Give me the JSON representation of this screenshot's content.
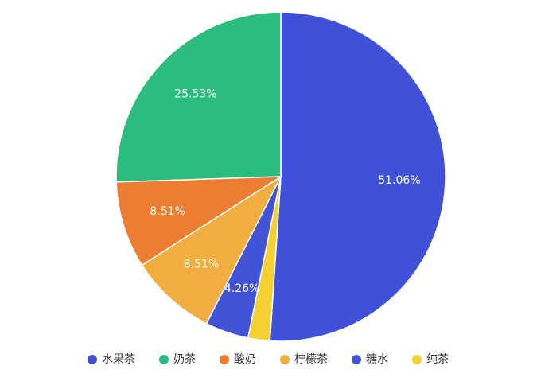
{
  "chart_data": {
    "type": "pie",
    "categories": [
      "水果茶",
      "奶茶",
      "酸奶",
      "柠檬茶",
      "糖水",
      "纯茶"
    ],
    "values": [
      51.06,
      25.53,
      8.51,
      8.51,
      4.26,
      2.13
    ],
    "value_labels": [
      "51.06%",
      "25.53%",
      "8.51%",
      "8.51%",
      "4.26%",
      null
    ],
    "colors": [
      "#3f51d9",
      "#2bbd7e",
      "#ed7d31",
      "#f0ad40",
      "#4154d8",
      "#f5d033"
    ],
    "legend": "bottom"
  }
}
